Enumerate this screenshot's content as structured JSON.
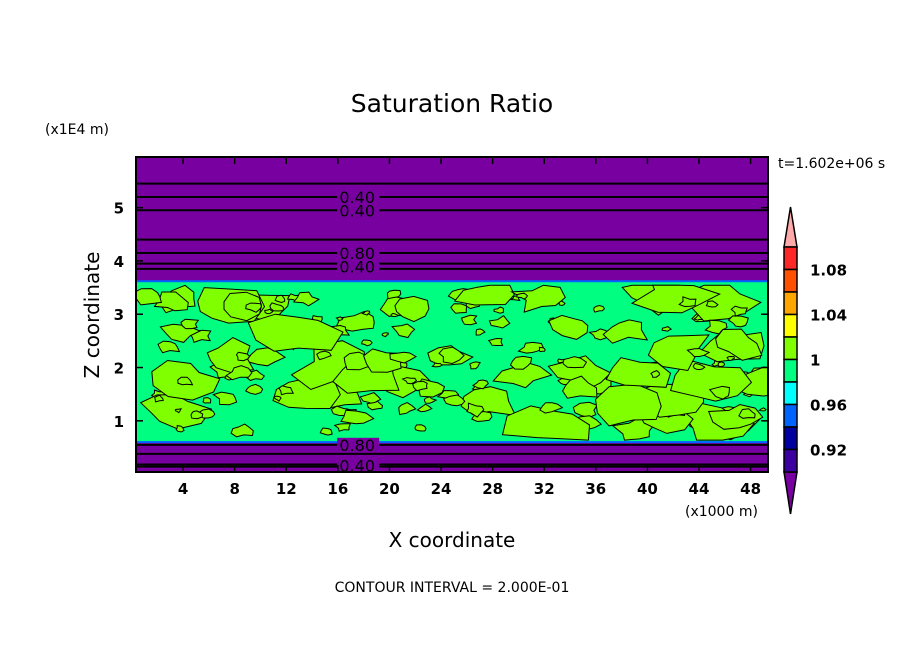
{
  "chart_data": {
    "type": "contour",
    "title": "Saturation Ratio",
    "xlabel": "X coordinate",
    "ylabel": "Z coordinate",
    "x_unit_label": "(x1000 m)",
    "y_unit_label": "(x1E4 m)",
    "time_label": "t=1.602e+06 s",
    "footer": "CONTOUR INTERVAL = 2.000E-01",
    "xlim": [
      0.35,
      49.35
    ],
    "ylim": [
      0.04,
      5.95
    ],
    "x_ticks": [
      4,
      8,
      12,
      16,
      20,
      24,
      28,
      32,
      36,
      40,
      44,
      48
    ],
    "x_tick_labels": [
      "4",
      "8",
      "12",
      "16",
      "20",
      "24",
      "28",
      "32",
      "36",
      "40",
      "44",
      "48"
    ],
    "y_ticks": [
      1,
      2,
      3,
      4,
      5
    ],
    "y_tick_labels": [
      "1",
      "2",
      "3",
      "4",
      "5"
    ],
    "contour_lines_z": [
      5.45,
      5.2,
      4.95,
      4.4,
      4.15,
      3.95,
      3.85,
      0.55,
      0.38,
      0.18,
      0.14
    ],
    "contour_labels": [
      {
        "text": "0.40",
        "x": 17.5,
        "z": 5.2
      },
      {
        "text": "0.40",
        "x": 17.5,
        "z": 4.95
      },
      {
        "text": "0.80",
        "x": 17.5,
        "z": 4.15
      },
      {
        "text": "0.40",
        "x": 17.5,
        "z": 3.9
      },
      {
        "text": "0.80",
        "x": 17.5,
        "z": 0.55
      },
      {
        "text": "0.40",
        "x": 17.5,
        "z": 0.16
      }
    ],
    "cloud_band_z": [
      0.62,
      3.6
    ],
    "colorbar": {
      "levels": [
        0.92,
        0.94,
        0.96,
        0.98,
        1.0,
        1.02,
        1.04,
        1.06,
        1.08,
        1.1
      ],
      "colors_top_to_bottom": [
        "#FF2828",
        "#FF5000",
        "#FFA500",
        "#FFFF00",
        "#80FF00",
        "#00FF80",
        "#00FFFF",
        "#0064FF",
        "#0000A0",
        "#3C00A0"
      ],
      "over_color": "#FFAAAA",
      "under_color": "#7800A0",
      "labels": [
        "1.08",
        "1.04",
        "1",
        "0.96",
        "0.92"
      ]
    },
    "fill_colors": {
      "dry": "#7800A0",
      "saturated": "#00FF80",
      "supersaturated": "#80FF00"
    }
  }
}
